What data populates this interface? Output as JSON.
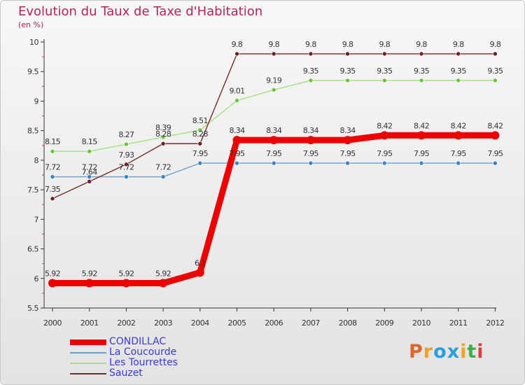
{
  "title": "Evolution du Taux de Taxe d'Habitation",
  "subtitle": "(en %)",
  "brand": {
    "text": "Proxiti",
    "letter_colors": [
      "#e0642b",
      "#f0a020",
      "#2aa0d8",
      "#2aa0d8",
      "#f0a020",
      "#3fae49",
      "#e03a3a"
    ]
  },
  "chart_data": {
    "type": "line",
    "title": "Evolution du Taux de Taxe d'Habitation",
    "ylabel": "(en %)",
    "xlabel": "",
    "ylim": [
      5.5,
      10
    ],
    "yticks": [
      "5.5",
      "6",
      "6.5",
      "7",
      "7.5",
      "8",
      "8.5",
      "9",
      "9.5",
      "10"
    ],
    "x": [
      "2000",
      "2001",
      "2002",
      "2003",
      "2004",
      "2005",
      "2006",
      "2007",
      "2008",
      "2009",
      "2010",
      "2011",
      "2012"
    ],
    "grid": false,
    "legend": "bottom-left",
    "series": [
      {
        "name": "CONDILLAC",
        "color": "#ee0000",
        "emphasis": true,
        "values": [
          5.92,
          5.92,
          5.92,
          5.92,
          6.1,
          8.34,
          8.34,
          8.34,
          8.34,
          8.42,
          8.42,
          8.42,
          8.42
        ],
        "labels": [
          "5.92",
          "5.92",
          "5.92",
          "5.92",
          "6.1",
          "8.34",
          "8.34",
          "8.34",
          "8.34",
          "8.42",
          "8.42",
          "8.42",
          "8.42"
        ]
      },
      {
        "name": "La Coucourde",
        "color": "#6a9fd0",
        "marker": "#3a82c2",
        "values": [
          7.72,
          7.72,
          7.72,
          7.72,
          7.95,
          7.95,
          7.95,
          7.95,
          7.95,
          7.95,
          7.95,
          7.95,
          7.95
        ],
        "labels": [
          "7.72",
          "7.72",
          "7.72",
          "7.72",
          "7.95",
          "7.95",
          "7.95",
          "7.95",
          "7.95",
          "7.95",
          "7.95",
          "7.95",
          "7.95"
        ]
      },
      {
        "name": "Les Tourrettes",
        "color": "#a6e079",
        "marker": "#6cc33a",
        "values": [
          8.15,
          8.15,
          8.27,
          8.39,
          8.51,
          9.01,
          9.19,
          9.35,
          9.35,
          9.35,
          9.35,
          9.35,
          9.35
        ],
        "labels": [
          "8.15",
          "8.15",
          "8.27",
          "8.39",
          "8.51",
          "9.01",
          "9.19",
          "9.35",
          "9.35",
          "9.35",
          "9.35",
          "9.35",
          "9.35"
        ]
      },
      {
        "name": "Sauzet",
        "color": "#7a2a2a",
        "marker": "#6a1f2a",
        "values": [
          7.35,
          7.64,
          7.93,
          8.28,
          8.28,
          9.8,
          9.8,
          9.8,
          9.8,
          9.8,
          9.8,
          9.8,
          9.8
        ],
        "labels": [
          "7.35",
          "7.64",
          "7.93",
          "8.28",
          "8.28",
          "9.8",
          "9.8",
          "9.8",
          "9.8",
          "9.8",
          "9.8",
          "9.8",
          "9.8"
        ]
      }
    ]
  }
}
